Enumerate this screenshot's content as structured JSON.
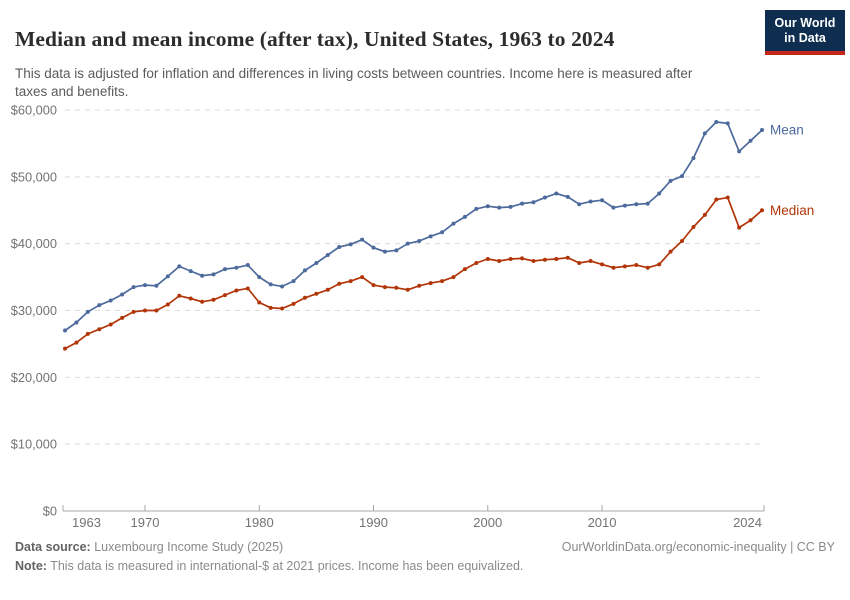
{
  "header": {
    "logo": {
      "line1": "Our World",
      "line2": "in Data"
    }
  },
  "series_labels": {
    "mean": "Mean",
    "median": "Median"
  },
  "footer": {
    "source_label": "Data source:",
    "source_text": " Luxembourg Income Study (2025)",
    "attribution": "OurWorldinData.org/economic-inequality | CC BY",
    "note_label": "Note:",
    "note_text": " This data is measured in international-$ at 2021 prices. Income has been equivalized."
  },
  "colors": {
    "mean": "#4C6A9C",
    "median": "#B13507",
    "grid": "#dcdcdc",
    "axis": "#a8a8a8",
    "tick_text": "#737373",
    "logo_bg": "#0f2e4f",
    "logo_stripe": "#c5271c"
  },
  "chart_data": {
    "type": "line",
    "title": "Median and mean income (after tax), United States, 1963 to 2024",
    "subtitle": "This data is adjusted for inflation and differences in living costs between countries. Income here is measured after taxes and benefits.",
    "xlabel": "",
    "ylabel": "",
    "xlim": [
      1963,
      2024
    ],
    "ylim": [
      0,
      60000
    ],
    "grid": "dashed horizontal gridlines",
    "legend_position": "end-of-line labels (right of last point)",
    "x_ticks": [
      1963,
      1970,
      1980,
      1990,
      2000,
      2010,
      2024
    ],
    "y_ticks": [
      0,
      10000,
      20000,
      30000,
      40000,
      50000,
      60000
    ],
    "y_tick_labels": [
      "$0",
      "$10,000",
      "$20,000",
      "$30,000",
      "$40,000",
      "$50,000",
      "$60,000"
    ],
    "x": [
      1963,
      1964,
      1965,
      1966,
      1967,
      1968,
      1969,
      1970,
      1971,
      1972,
      1973,
      1974,
      1975,
      1976,
      1977,
      1978,
      1979,
      1980,
      1981,
      1982,
      1983,
      1984,
      1985,
      1986,
      1987,
      1988,
      1989,
      1990,
      1991,
      1992,
      1993,
      1994,
      1995,
      1996,
      1997,
      1998,
      1999,
      2000,
      2001,
      2002,
      2003,
      2004,
      2005,
      2006,
      2007,
      2008,
      2009,
      2010,
      2011,
      2012,
      2013,
      2014,
      2015,
      2016,
      2017,
      2018,
      2019,
      2020,
      2021,
      2022,
      2023,
      2024
    ],
    "series": [
      {
        "name": "Mean",
        "color": "#4C6A9C",
        "values": [
          27000,
          28200,
          29800,
          30800,
          31500,
          32400,
          33500,
          33800,
          33700,
          35100,
          36600,
          35900,
          35200,
          35400,
          36200,
          36400,
          36800,
          35000,
          33900,
          33600,
          34400,
          36000,
          37100,
          38300,
          39500,
          39900,
          40600,
          39400,
          38800,
          39000,
          40000,
          40400,
          41100,
          41700,
          43000,
          44000,
          45200,
          45600,
          45400,
          45500,
          46000,
          46200,
          46900,
          47500,
          47000,
          45900,
          46300,
          46500,
          45400,
          45700,
          45900,
          46000,
          47500,
          49400,
          50100,
          52800,
          56500,
          58200,
          58000,
          53800,
          55400,
          57000
        ]
      },
      {
        "name": "Median",
        "color": "#B13507",
        "values": [
          24300,
          25200,
          26500,
          27200,
          27900,
          28900,
          29800,
          30000,
          30000,
          30900,
          32200,
          31800,
          31300,
          31600,
          32300,
          33000,
          33300,
          31200,
          30400,
          30300,
          31000,
          31900,
          32500,
          33100,
          34000,
          34400,
          35000,
          33800,
          33500,
          33400,
          33100,
          33700,
          34100,
          34400,
          35000,
          36200,
          37100,
          37700,
          37400,
          37700,
          37800,
          37400,
          37600,
          37700,
          37900,
          37100,
          37400,
          36900,
          36400,
          36600,
          36800,
          36400,
          36900,
          38800,
          40400,
          42500,
          44300,
          46600,
          46900,
          42400,
          43500,
          45000
        ]
      }
    ]
  }
}
